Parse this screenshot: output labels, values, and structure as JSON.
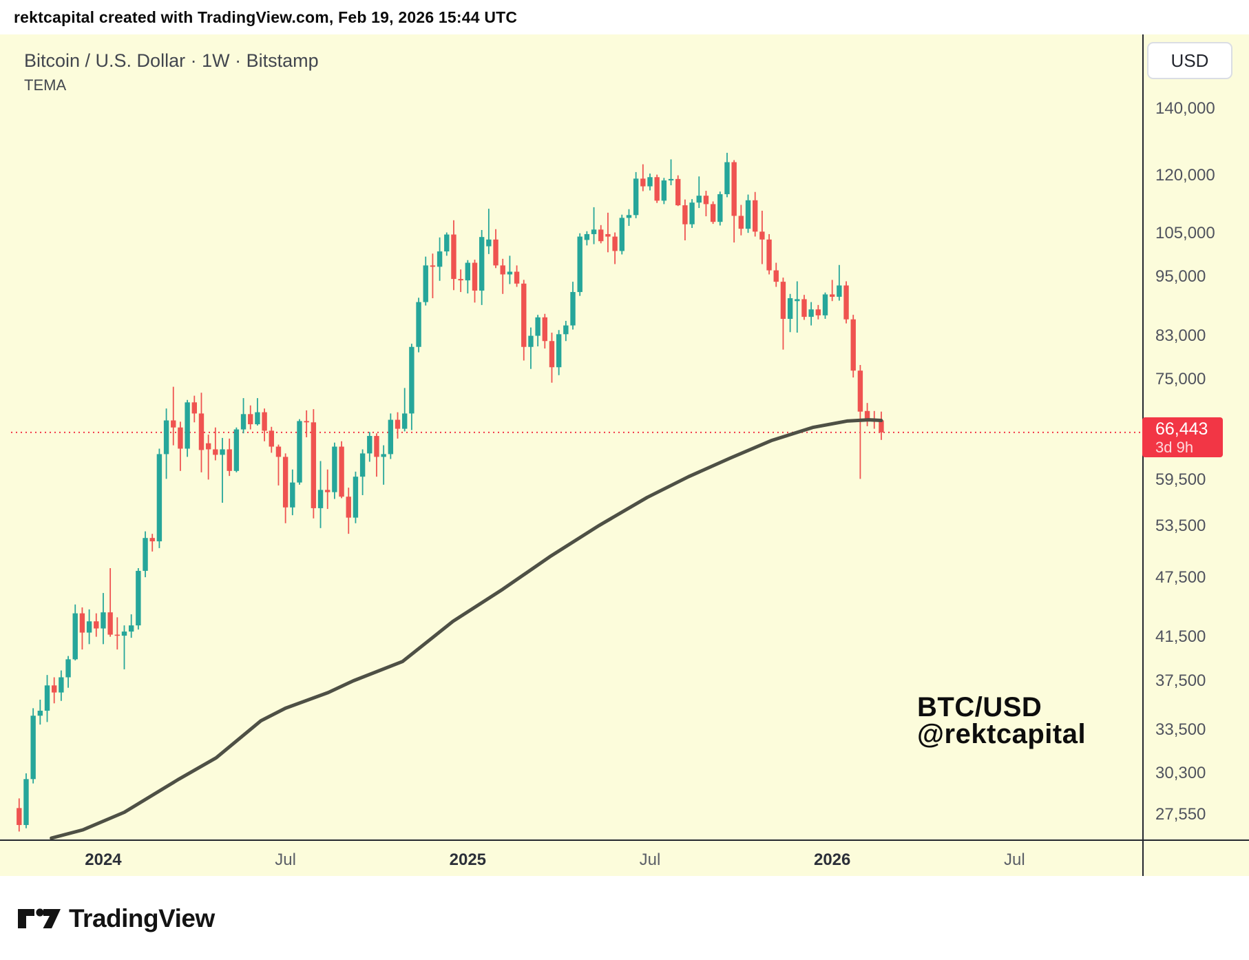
{
  "header": {
    "text": "rektcapital created with TradingView.com, Feb 19, 2026 15:44 UTC"
  },
  "titles": {
    "symbol": "Bitcoin / U.S. Dollar · 1W · Bitstamp",
    "indicator": "TEMA"
  },
  "axis": {
    "currency_button": "USD"
  },
  "badge": {
    "price": "66,443",
    "countdown": "3d 9h"
  },
  "watermark": {
    "line1": "BTC/USD",
    "line2": "@rektcapital"
  },
  "footer": {
    "logo_text": "TradingView"
  },
  "colors": {
    "background": "#fcfcdb",
    "up": "#26a69a",
    "down": "#ef5350",
    "tema": "#4e5045",
    "badge": "#f23645",
    "dotted_line": "#f23645",
    "axis_line": "#23262e",
    "label": "#50535e",
    "label_bold": "#2b2f38",
    "title": "#42464e",
    "watermark": "#0d0d0d"
  },
  "chart_data": {
    "type": "candlestick",
    "title": "Bitcoin / U.S. Dollar · 1W · Bitstamp",
    "symbol": "BTC/USD",
    "timeframe": "1W",
    "exchange": "Bitstamp",
    "scale": "log",
    "grid": false,
    "price_axis_ticks": [
      140000,
      120000,
      105000,
      95000,
      83000,
      75000,
      59500,
      53500,
      47500,
      41500,
      37500,
      33500,
      30300,
      27550
    ],
    "time_axis_labels": [
      {
        "index": 12,
        "label": "2024",
        "bold": true
      },
      {
        "index": 38,
        "label": "Jul",
        "bold": false
      },
      {
        "index": 64,
        "label": "2025",
        "bold": true
      },
      {
        "index": 90,
        "label": "Jul",
        "bold": false
      },
      {
        "index": 116,
        "label": "2026",
        "bold": true
      },
      {
        "index": 142,
        "label": "Jul",
        "bold": false
      }
    ],
    "last_price": 66443,
    "countdown": "3d 9h",
    "units": "thousand USD",
    "columns": [
      "week_start",
      "open",
      "high",
      "low",
      "close"
    ],
    "weeks": [
      [
        "2023-10-09",
        27.97,
        28.6,
        26.5,
        26.9
      ],
      [
        "2023-10-16",
        26.9,
        30.3,
        26.7,
        29.9
      ],
      [
        "2023-10-23",
        29.9,
        35.2,
        29.6,
        34.6
      ],
      [
        "2023-10-30",
        34.6,
        35.9,
        33.9,
        35.0
      ],
      [
        "2023-11-06",
        35.0,
        38.0,
        34.1,
        37.1
      ],
      [
        "2023-11-13",
        37.1,
        37.8,
        35.6,
        36.5
      ],
      [
        "2023-11-20",
        36.5,
        38.4,
        35.8,
        37.8
      ],
      [
        "2023-11-27",
        37.8,
        39.7,
        36.9,
        39.4
      ],
      [
        "2023-12-04",
        39.4,
        44.7,
        39.3,
        43.8
      ],
      [
        "2023-12-11",
        43.8,
        44.4,
        40.3,
        41.9
      ],
      [
        "2023-12-18",
        41.9,
        44.2,
        40.8,
        43.0
      ],
      [
        "2023-12-25",
        43.0,
        43.8,
        41.5,
        42.3
      ],
      [
        "2024-01-01",
        42.3,
        45.9,
        40.8,
        43.9
      ],
      [
        "2024-01-08",
        43.9,
        48.6,
        41.5,
        41.7
      ],
      [
        "2024-01-15",
        41.7,
        43.4,
        40.3,
        41.6
      ],
      [
        "2024-01-22",
        41.6,
        42.6,
        38.5,
        42.0
      ],
      [
        "2024-01-29",
        42.0,
        43.7,
        41.4,
        42.6
      ],
      [
        "2024-02-05",
        42.6,
        48.6,
        42.2,
        48.3
      ],
      [
        "2024-02-12",
        48.3,
        52.9,
        47.6,
        52.1
      ],
      [
        "2024-02-19",
        52.1,
        52.6,
        50.5,
        51.7
      ],
      [
        "2024-02-26",
        51.7,
        64.0,
        50.9,
        63.2
      ],
      [
        "2024-03-04",
        63.2,
        70.2,
        59.7,
        68.3
      ],
      [
        "2024-03-11",
        68.3,
        73.8,
        64.5,
        67.2
      ],
      [
        "2024-03-18",
        67.2,
        68.1,
        60.8,
        64.0
      ],
      [
        "2024-03-25",
        64.0,
        71.6,
        62.8,
        71.2
      ],
      [
        "2024-04-01",
        71.2,
        72.3,
        68.0,
        69.4
      ],
      [
        "2024-04-08",
        69.4,
        72.8,
        60.6,
        63.8
      ],
      [
        "2024-04-15",
        64.8,
        66.1,
        59.6,
        63.9
      ],
      [
        "2024-04-22",
        63.9,
        67.2,
        62.3,
        63.1
      ],
      [
        "2024-04-29",
        63.1,
        65.6,
        56.5,
        63.9
      ],
      [
        "2024-05-06",
        63.9,
        65.5,
        60.1,
        60.8
      ],
      [
        "2024-05-13",
        60.8,
        67.2,
        60.6,
        66.9
      ],
      [
        "2024-05-20",
        66.9,
        71.9,
        66.3,
        69.3
      ],
      [
        "2024-05-27",
        69.3,
        70.7,
        66.9,
        67.7
      ],
      [
        "2024-06-03",
        67.7,
        71.9,
        67.5,
        69.6
      ],
      [
        "2024-06-10",
        69.6,
        70.2,
        65.1,
        66.7
      ],
      [
        "2024-06-17",
        66.7,
        67.3,
        63.4,
        64.3
      ],
      [
        "2024-06-24",
        64.3,
        64.6,
        58.8,
        62.8
      ],
      [
        "2024-07-01",
        62.8,
        63.3,
        53.9,
        55.9
      ],
      [
        "2024-07-08",
        55.9,
        61.0,
        54.9,
        59.2
      ],
      [
        "2024-07-15",
        59.2,
        68.5,
        58.9,
        68.2
      ],
      [
        "2024-07-22",
        68.2,
        69.9,
        65.7,
        68.0
      ],
      [
        "2024-07-29",
        68.0,
        70.1,
        54.5,
        55.8
      ],
      [
        "2024-08-05",
        55.8,
        62.2,
        53.3,
        58.2
      ],
      [
        "2024-08-12",
        58.2,
        61.0,
        55.7,
        57.9
      ],
      [
        "2024-08-19",
        57.9,
        64.9,
        57.0,
        64.3
      ],
      [
        "2024-08-26",
        64.3,
        65.1,
        57.1,
        57.3
      ],
      [
        "2024-09-02",
        57.3,
        58.5,
        52.6,
        54.6
      ],
      [
        "2024-09-09",
        54.6,
        60.7,
        53.9,
        60.0
      ],
      [
        "2024-09-16",
        60.0,
        63.9,
        57.5,
        63.3
      ],
      [
        "2024-09-23",
        63.3,
        66.5,
        62.1,
        65.9
      ],
      [
        "2024-09-30",
        65.9,
        66.3,
        60.0,
        62.8
      ],
      [
        "2024-10-07",
        62.8,
        64.5,
        58.9,
        63.2
      ],
      [
        "2024-10-14",
        63.2,
        69.4,
        62.5,
        68.4
      ],
      [
        "2024-10-21",
        68.4,
        69.6,
        65.5,
        67.0
      ],
      [
        "2024-10-28",
        67.0,
        73.6,
        66.6,
        69.4
      ],
      [
        "2024-11-04",
        69.4,
        81.5,
        66.8,
        80.9
      ],
      [
        "2024-11-11",
        80.9,
        90.6,
        79.9,
        89.7
      ],
      [
        "2024-11-18",
        89.7,
        99.6,
        89.0,
        97.6
      ],
      [
        "2024-11-25",
        97.6,
        100.3,
        90.5,
        97.3
      ],
      [
        "2024-12-02",
        97.3,
        104.1,
        94.2,
        100.8
      ],
      [
        "2024-12-09",
        100.8,
        105.3,
        99.8,
        104.8
      ],
      [
        "2024-12-16",
        104.8,
        108.3,
        92.2,
        94.6
      ],
      [
        "2024-12-23",
        94.6,
        96.7,
        91.8,
        94.3
      ],
      [
        "2024-12-30",
        94.3,
        98.8,
        91.5,
        98.2
      ],
      [
        "2025-01-06",
        98.2,
        98.9,
        89.6,
        92.1
      ],
      [
        "2025-01-13",
        92.1,
        105.9,
        89.1,
        104.2
      ],
      [
        "2025-01-20",
        102.0,
        111.2,
        100.2,
        103.6
      ],
      [
        "2025-01-27",
        103.6,
        106.1,
        97.0,
        97.6
      ],
      [
        "2025-02-03",
        97.6,
        99.1,
        91.4,
        95.6
      ],
      [
        "2025-02-10",
        95.6,
        99.8,
        93.5,
        96.2
      ],
      [
        "2025-02-17",
        96.2,
        97.6,
        92.9,
        93.6
      ],
      [
        "2025-02-24",
        93.6,
        94.4,
        78.4,
        80.9
      ],
      [
        "2025-03-03",
        80.9,
        84.6,
        76.9,
        83.0
      ],
      [
        "2025-03-10",
        83.0,
        87.1,
        81.0,
        86.6
      ],
      [
        "2025-03-17",
        86.6,
        87.3,
        80.6,
        82.0
      ],
      [
        "2025-03-24",
        82.0,
        83.6,
        74.5,
        77.2
      ],
      [
        "2025-03-31",
        77.2,
        84.1,
        75.8,
        83.3
      ],
      [
        "2025-04-07",
        83.3,
        85.9,
        82.0,
        85.0
      ],
      [
        "2025-04-14",
        85.0,
        94.0,
        84.2,
        91.8
      ],
      [
        "2025-04-21",
        91.8,
        105.1,
        91.0,
        104.3
      ],
      [
        "2025-04-28",
        103.5,
        105.6,
        102.2,
        104.9
      ],
      [
        "2025-05-05",
        104.9,
        111.6,
        102.5,
        106.0
      ],
      [
        "2025-05-12",
        106.0,
        107.1,
        102.7,
        103.2
      ],
      [
        "2025-05-19",
        104.9,
        110.2,
        100.6,
        104.3
      ],
      [
        "2025-05-26",
        104.3,
        105.3,
        97.9,
        100.9
      ],
      [
        "2025-06-02",
        100.9,
        109.7,
        100.1,
        108.9
      ],
      [
        "2025-06-09",
        108.9,
        111.1,
        106.9,
        109.6
      ],
      [
        "2025-06-16",
        109.6,
        121.0,
        108.8,
        119.2
      ],
      [
        "2025-06-23",
        119.2,
        123.2,
        115.8,
        117.1
      ],
      [
        "2025-06-30",
        117.1,
        120.6,
        116.0,
        119.6
      ],
      [
        "2025-07-07",
        119.6,
        120.3,
        112.7,
        113.3
      ],
      [
        "2025-07-14",
        113.3,
        119.4,
        112.4,
        118.7
      ],
      [
        "2025-07-21",
        118.7,
        124.6,
        117.4,
        119.1
      ],
      [
        "2025-07-28",
        119.1,
        120.1,
        111.9,
        112.1
      ],
      [
        "2025-08-04",
        112.1,
        113.6,
        103.4,
        107.3
      ],
      [
        "2025-08-11",
        107.3,
        113.7,
        106.4,
        112.8
      ],
      [
        "2025-08-18",
        112.8,
        119.8,
        111.4,
        114.6
      ],
      [
        "2025-08-25",
        114.6,
        115.9,
        109.3,
        112.4
      ],
      [
        "2025-09-01",
        112.4,
        113.1,
        107.4,
        107.9
      ],
      [
        "2025-09-08",
        107.9,
        115.7,
        107.0,
        115.0
      ],
      [
        "2025-09-15",
        115.0,
        126.5,
        114.2,
        123.8
      ],
      [
        "2025-09-22",
        123.8,
        124.4,
        102.9,
        109.4
      ],
      [
        "2025-09-29",
        109.4,
        112.2,
        104.6,
        106.2
      ],
      [
        "2025-10-06",
        106.2,
        114.9,
        105.2,
        113.4
      ],
      [
        "2025-10-13",
        113.4,
        115.6,
        104.3,
        105.5
      ],
      [
        "2025-10-20",
        105.5,
        110.7,
        97.9,
        103.6
      ],
      [
        "2025-10-27",
        103.6,
        104.9,
        95.6,
        96.5
      ],
      [
        "2025-11-03",
        96.5,
        98.2,
        92.9,
        94.0
      ],
      [
        "2025-11-10",
        94.0,
        94.9,
        80.4,
        86.3
      ],
      [
        "2025-11-17",
        86.3,
        91.4,
        83.7,
        90.5
      ],
      [
        "2025-11-24",
        89.9,
        94.1,
        83.6,
        90.3
      ],
      [
        "2025-12-01",
        90.3,
        91.2,
        86.1,
        86.7
      ],
      [
        "2025-12-08",
        86.7,
        89.7,
        85.0,
        88.2
      ],
      [
        "2025-12-15",
        88.2,
        89.1,
        86.2,
        87.0
      ],
      [
        "2025-12-22",
        87.0,
        91.7,
        86.3,
        91.3
      ],
      [
        "2025-12-29",
        91.3,
        94.4,
        89.9,
        90.8
      ],
      [
        "2026-01-05",
        90.8,
        97.7,
        90.0,
        93.2
      ],
      [
        "2026-01-12",
        93.2,
        94.1,
        85.4,
        86.2
      ],
      [
        "2026-01-19",
        86.2,
        87.1,
        75.4,
        76.6
      ],
      [
        "2026-01-26",
        76.6,
        77.6,
        59.7,
        69.7
      ],
      [
        "2026-02-02",
        69.8,
        71.1,
        67.4,
        68.4
      ],
      [
        "2026-02-09",
        68.4,
        69.8,
        67.0,
        68.3
      ],
      [
        "2026-02-16",
        68.3,
        69.7,
        65.3,
        66.443
      ]
    ],
    "overlays": [
      {
        "name": "TEMA",
        "type": "line",
        "points": [
          [
            4.6,
            26.1
          ],
          [
            9.1,
            26.6
          ],
          [
            15,
            27.7
          ],
          [
            22.8,
            29.9
          ],
          [
            28.1,
            31.4
          ],
          [
            34.5,
            34.2
          ],
          [
            38,
            35.2
          ],
          [
            44.1,
            36.5
          ],
          [
            47.7,
            37.5
          ],
          [
            54.7,
            39.2
          ],
          [
            61.9,
            43.0
          ],
          [
            69,
            46.3
          ],
          [
            75.9,
            50.0
          ],
          [
            82.7,
            53.6
          ],
          [
            89.6,
            57.2
          ],
          [
            95.5,
            60.0
          ],
          [
            101.4,
            62.6
          ],
          [
            107.3,
            65.2
          ],
          [
            113.2,
            67.2
          ],
          [
            118.1,
            68.2
          ],
          [
            121.2,
            68.4
          ],
          [
            123,
            68.3
          ]
        ]
      }
    ]
  }
}
